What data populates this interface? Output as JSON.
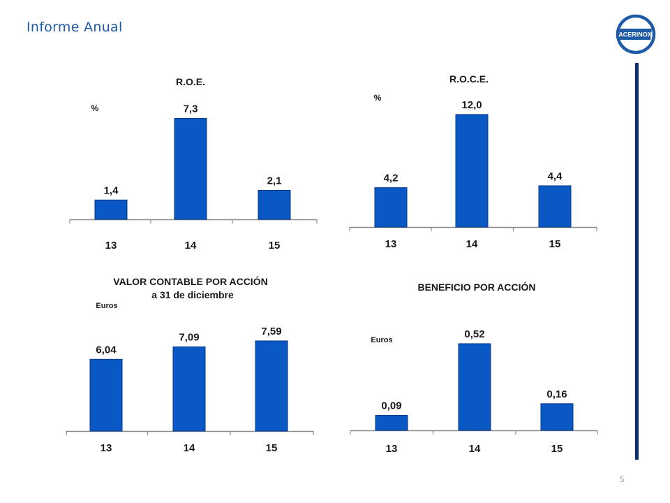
{
  "header": {
    "title": "Informe Anual"
  },
  "logo": {
    "text": "ACERINOX",
    "color": "#1f5aa6"
  },
  "page": {
    "number": "5"
  },
  "colors": {
    "bar": "#0a58c4",
    "bar_edge": "#06378a",
    "accent": "#1f5aa6",
    "rule": "#0e2f6e"
  },
  "chart_data": [
    {
      "type": "bar",
      "title": "R.O.E.",
      "subtitle": "",
      "unit": "%",
      "categories": [
        "13",
        "14",
        "15"
      ],
      "values": [
        1.4,
        7.3,
        2.1
      ],
      "labels": [
        "1,4",
        "7,3",
        "2,1"
      ],
      "ylim": [
        0,
        9.6
      ],
      "grid": false
    },
    {
      "type": "bar",
      "title": "R.O.C.E.",
      "subtitle": "",
      "unit": "%",
      "categories": [
        "13",
        "14",
        "15"
      ],
      "values": [
        4.2,
        12.0,
        4.4
      ],
      "labels": [
        "4,2",
        "12,0",
        "4,4"
      ],
      "ylim": [
        0,
        14.3
      ],
      "grid": false
    },
    {
      "type": "bar",
      "title": "VALOR CONTABLE POR ACCIÓN",
      "subtitle": "a 31 de diciembre",
      "unit": "Euros",
      "categories": [
        "13",
        "14",
        "15"
      ],
      "values": [
        6.04,
        7.09,
        7.59
      ],
      "labels": [
        "6,04",
        "7,09",
        "7,59"
      ],
      "ylim": [
        0,
        10.0
      ],
      "grid": false
    },
    {
      "type": "bar",
      "title": "BENEFICIO POR ACCIÓN",
      "subtitle": "",
      "unit": "Euros",
      "categories": [
        "13",
        "14",
        "15"
      ],
      "values": [
        0.09,
        0.52,
        0.16
      ],
      "labels": [
        "0,09",
        "0,52",
        "0,16"
      ],
      "ylim": [
        0,
        0.83
      ],
      "grid": false
    }
  ]
}
